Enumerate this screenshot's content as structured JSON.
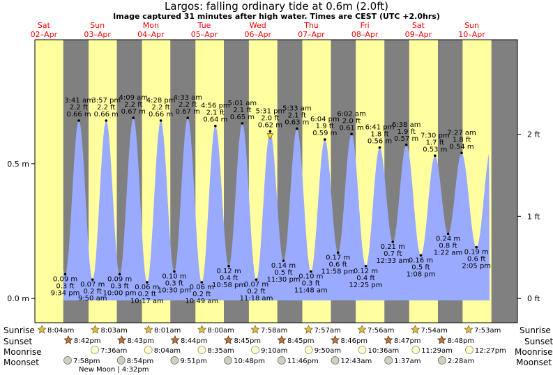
{
  "title": "Largos: falling  ordinary tide at 0.6m (2.0ft)",
  "subtitle": "Image captured 31 minutes after high water. Times are CEST (UTC +2.0hrs)",
  "colors": {
    "night": "#808080",
    "day": "#ffffa0",
    "water": "#9aabff",
    "dayLabel": "#ff0000"
  },
  "days": [
    {
      "dow": "Sat",
      "date": "02–Apr"
    },
    {
      "dow": "Sun",
      "date": "03–Apr"
    },
    {
      "dow": "Mon",
      "date": "04–Apr"
    },
    {
      "dow": "Tue",
      "date": "05–Apr"
    },
    {
      "dow": "Wed",
      "date": "06–Apr"
    },
    {
      "dow": "Thu",
      "date": "07–Apr"
    },
    {
      "dow": "Fri",
      "date": "08–Apr"
    },
    {
      "dow": "Sat",
      "date": "09–Apr"
    },
    {
      "dow": "Sun",
      "date": "10–Apr"
    }
  ],
  "chart_data": {
    "type": "area",
    "y_left_unit": "m",
    "y_right_unit": "ft",
    "ylim_m": [
      -0.09,
      0.96
    ],
    "y_left_ticks": [
      {
        "v": 0.0,
        "label": "0.0 m"
      },
      {
        "v": 0.5,
        "label": "0.5 m"
      }
    ],
    "y_right_ticks": [
      {
        "v": 0.0,
        "label": "0 ft"
      },
      {
        "v": 0.3048,
        "label": "1 ft"
      },
      {
        "v": 0.6096,
        "label": "2 ft"
      }
    ],
    "extremes": [
      {
        "type": "low",
        "time": "9:34 pm",
        "m": "0.09 m",
        "ft": "0.3 ft",
        "value": 0.09
      },
      {
        "type": "high",
        "time": "3:41 am",
        "m": "0.66 m",
        "ft": "2.2 ft",
        "value": 0.66
      },
      {
        "type": "low",
        "time": "9:50 am",
        "m": "0.07 m",
        "ft": "0.2 ft",
        "value": 0.07
      },
      {
        "type": "high",
        "time": "3:57 pm",
        "m": "0.66 m",
        "ft": "2.2 ft",
        "value": 0.66
      },
      {
        "type": "low",
        "time": "10:00 pm",
        "m": "0.09 m",
        "ft": "0.3 ft",
        "value": 0.09
      },
      {
        "type": "high",
        "time": "4:09 am",
        "m": "0.67 m",
        "ft": "2.2 ft",
        "value": 0.67
      },
      {
        "type": "low",
        "time": "10:17 am",
        "m": "0.06 m",
        "ft": "0.2 ft",
        "value": 0.06
      },
      {
        "type": "high",
        "time": "4:28 pm",
        "m": "0.66 m",
        "ft": "2.2 ft",
        "value": 0.66
      },
      {
        "type": "low",
        "time": "10:30 pm",
        "m": "0.10 m",
        "ft": "0.3 ft",
        "value": 0.1
      },
      {
        "type": "high",
        "time": "4:33 am",
        "m": "0.67 m",
        "ft": "2.2 ft",
        "value": 0.67
      },
      {
        "type": "low",
        "time": "10:49 am",
        "m": "0.06 m",
        "ft": "0.2 ft",
        "value": 0.06
      },
      {
        "type": "high",
        "time": "4:56 pm",
        "m": "0.64 m",
        "ft": "2.1 ft",
        "value": 0.64
      },
      {
        "type": "low",
        "time": "10:58 pm",
        "m": "0.12 m",
        "ft": "0.4 ft",
        "value": 0.12
      },
      {
        "type": "high",
        "time": "5:01 am",
        "m": "0.65 m",
        "ft": "2.1 ft",
        "value": 0.65
      },
      {
        "type": "low",
        "time": "11:18 am",
        "m": "0.07 m",
        "ft": "0.2 ft",
        "value": 0.07
      },
      {
        "type": "high",
        "time": "5:31 pm",
        "m": "0.62 m",
        "ft": "2.0 ft",
        "value": 0.62
      },
      {
        "type": "low",
        "time": "11:30 pm",
        "m": "0.14 m",
        "ft": "0.5 ft",
        "value": 0.14
      },
      {
        "type": "high",
        "time": "5:33 am",
        "m": "0.63 m",
        "ft": "2.1 ft",
        "value": 0.63
      },
      {
        "type": "low",
        "time": "11:48 am",
        "m": "0.10 m",
        "ft": "0.3 ft",
        "value": 0.1
      },
      {
        "type": "high",
        "time": "6:04 pm",
        "m": "0.59 m",
        "ft": "1.9 ft",
        "value": 0.59
      },
      {
        "type": "low",
        "time": "11:58 pm",
        "m": "0.17 m",
        "ft": "0.6 ft",
        "value": 0.17
      },
      {
        "type": "high",
        "time": "6:02 am",
        "m": "0.61 m",
        "ft": "2.0 ft",
        "value": 0.61
      },
      {
        "type": "low",
        "time": "12:25 pm",
        "m": "0.12 m",
        "ft": "0.4 ft",
        "value": 0.12
      },
      {
        "type": "high",
        "time": "6:41 pm",
        "m": "0.56 m",
        "ft": "1.8 ft",
        "value": 0.56
      },
      {
        "type": "low",
        "time": "12:33 am",
        "m": "0.21 m",
        "ft": "0.7 ft",
        "value": 0.21
      },
      {
        "type": "high",
        "time": "6:38 am",
        "m": "0.57 m",
        "ft": "1.9 ft",
        "value": 0.57
      },
      {
        "type": "low",
        "time": "1:08 pm",
        "m": "0.16 m",
        "ft": "0.5 ft",
        "value": 0.16
      },
      {
        "type": "high",
        "time": "7:30 pm",
        "m": "0.53 m",
        "ft": "1.7 ft",
        "value": 0.53
      },
      {
        "type": "low",
        "time": "1:22 am",
        "m": "0.24 m",
        "ft": "0.8 ft",
        "value": 0.24
      },
      {
        "type": "high",
        "time": "7:27 am",
        "m": "0.54 m",
        "ft": "1.8 ft",
        "value": 0.54
      },
      {
        "type": "low",
        "time": "2:05 pm",
        "m": "0.19 m",
        "ft": "0.6 ft",
        "value": 0.19
      }
    ],
    "current_marker": {
      "time": "5:31 pm",
      "day": "06–Apr"
    }
  },
  "rows": {
    "sunrise_label": "Sunrise",
    "sunset_label": "Sunset",
    "moonrise_label": "Moonrise",
    "moonset_label": "Moonset",
    "sunrise": [
      "8:04am",
      "8:03am",
      "8:01am",
      "8:00am",
      "7:58am",
      "7:57am",
      "7:56am",
      "7:54am",
      "7:53am"
    ],
    "sunset": [
      "8:42pm",
      "8:43pm",
      "8:44pm",
      "8:45pm",
      "8:45pm",
      "8:46pm",
      "8:47pm",
      "8:48pm"
    ],
    "moonrise": [
      "7:36am",
      "8:04am",
      "8:35am",
      "9:10am",
      "9:50am",
      "10:36am",
      "11:29am",
      "12:27pm"
    ],
    "moonset": [
      "7:58pm",
      "8:54pm",
      "9:51pm",
      "10:48pm",
      "11:46pm",
      "12:43am",
      "1:37am",
      "2:28am"
    ],
    "new_moon": "New Moon | 4:32pm"
  }
}
